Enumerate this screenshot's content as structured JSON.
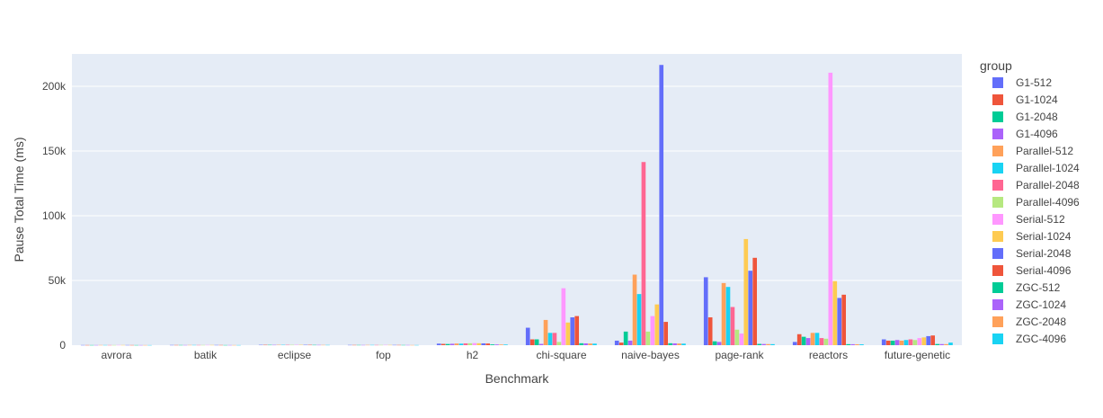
{
  "chart_data": {
    "type": "bar",
    "barmode": "group",
    "title": "",
    "xlabel": "Benchmark",
    "ylabel": "Pause Total Time (ms)",
    "ylim": [
      0,
      225000
    ],
    "yticks": [
      0,
      50000,
      100000,
      150000,
      200000
    ],
    "ytick_labels": [
      "0",
      "50k",
      "100k",
      "150k",
      "200k"
    ],
    "legend_title": "group",
    "legend_position": "right",
    "categories": [
      "avrora",
      "batik",
      "eclipse",
      "fop",
      "h2",
      "chi-square",
      "naive-bayes",
      "page-rank",
      "reactors",
      "future-genetic"
    ],
    "series": [
      {
        "name": "G1-512",
        "color": "#636efa",
        "values": [
          120,
          150,
          250,
          180,
          1200,
          13500,
          3500,
          52500,
          2500,
          4500
        ]
      },
      {
        "name": "G1-1024",
        "color": "#EF553B",
        "values": [
          110,
          140,
          240,
          170,
          1000,
          4500,
          2000,
          21500,
          8500,
          3500
        ]
      },
      {
        "name": "G1-2048",
        "color": "#00cc96",
        "values": [
          100,
          130,
          230,
          160,
          900,
          4500,
          10500,
          3000,
          6500,
          3500
        ]
      },
      {
        "name": "G1-4096",
        "color": "#ab63fa",
        "values": [
          95,
          120,
          220,
          150,
          1100,
          1000,
          3500,
          2500,
          5500,
          4000
        ]
      },
      {
        "name": "Parallel-512",
        "color": "#FFA15A",
        "values": [
          130,
          160,
          260,
          190,
          1300,
          19500,
          54500,
          48000,
          9500,
          3500
        ]
      },
      {
        "name": "Parallel-1024",
        "color": "#19d3f3",
        "values": [
          120,
          150,
          250,
          180,
          1200,
          9500,
          39500,
          45000,
          9500,
          4000
        ]
      },
      {
        "name": "Parallel-2048",
        "color": "#FF6692",
        "values": [
          110,
          140,
          240,
          170,
          1400,
          9500,
          141500,
          29500,
          5500,
          4500
        ]
      },
      {
        "name": "Parallel-4096",
        "color": "#B6E880",
        "values": [
          100,
          130,
          230,
          160,
          1500,
          2500,
          10500,
          12000,
          5000,
          4000
        ]
      },
      {
        "name": "Serial-512",
        "color": "#FF97FF",
        "values": [
          140,
          170,
          270,
          200,
          1600,
          44000,
          22500,
          9000,
          210500,
          5500
        ]
      },
      {
        "name": "Serial-1024",
        "color": "#FECB52",
        "values": [
          130,
          160,
          260,
          190,
          1500,
          17500,
          31500,
          82000,
          49500,
          6000
        ]
      },
      {
        "name": "Serial-2048",
        "color": "#636efa",
        "values": [
          120,
          150,
          250,
          180,
          1400,
          21500,
          216500,
          57500,
          36500,
          7000
        ]
      },
      {
        "name": "Serial-4096",
        "color": "#EF553B",
        "values": [
          110,
          140,
          240,
          170,
          1300,
          22500,
          18000,
          67500,
          39000,
          7500
        ]
      },
      {
        "name": "ZGC-512",
        "color": "#00cc96",
        "values": [
          90,
          100,
          200,
          140,
          600,
          1500,
          1500,
          1000,
          800,
          900
        ]
      },
      {
        "name": "ZGC-1024",
        "color": "#ab63fa",
        "values": [
          85,
          95,
          190,
          130,
          550,
          1400,
          1400,
          900,
          750,
          850
        ]
      },
      {
        "name": "ZGC-2048",
        "color": "#FFA15A",
        "values": [
          80,
          90,
          180,
          120,
          500,
          1300,
          1300,
          850,
          700,
          800
        ]
      },
      {
        "name": "ZGC-4096",
        "color": "#19d3f3",
        "values": [
          75,
          85,
          170,
          110,
          480,
          1200,
          1200,
          800,
          650,
          2000
        ]
      }
    ]
  }
}
